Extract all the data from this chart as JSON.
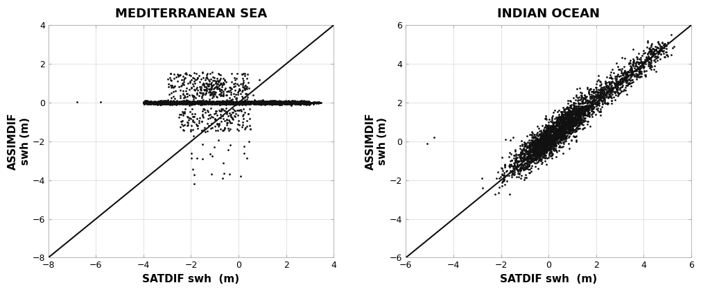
{
  "panels": [
    {
      "title": "MEDITERRANEAN SEA",
      "xlabel": "SATDIF swh  (m)",
      "ylabel": "ASSIMDIF\nswh (m)",
      "xlim": [
        -8,
        4
      ],
      "ylim": [
        -8,
        4
      ],
      "xticks": [
        -8,
        -6,
        -4,
        -2,
        0,
        2,
        4
      ],
      "yticks": [
        -8,
        -6,
        -4,
        -2,
        0,
        2,
        4
      ],
      "diag_line": [
        -8,
        4
      ],
      "seed": 42
    },
    {
      "title": "INDIAN OCEAN",
      "xlabel": "SATDIF swh  (m)",
      "ylabel": "ASSIMDIF\nswh (m)",
      "xlim": [
        -6,
        6
      ],
      "ylim": [
        -6,
        6
      ],
      "xticks": [
        -6,
        -4,
        -2,
        0,
        2,
        4,
        6
      ],
      "yticks": [
        -6,
        -4,
        -2,
        0,
        2,
        4,
        6
      ],
      "diag_line": [
        -6,
        6
      ],
      "seed": 77
    }
  ],
  "marker": ".",
  "markersize": 2,
  "color": "#111111",
  "title_fontsize": 13,
  "label_fontsize": 11,
  "tick_fontsize": 9,
  "title_fontweight": "bold",
  "label_fontweight": "bold",
  "diag_linewidth": 1.5,
  "bg_color": "white"
}
